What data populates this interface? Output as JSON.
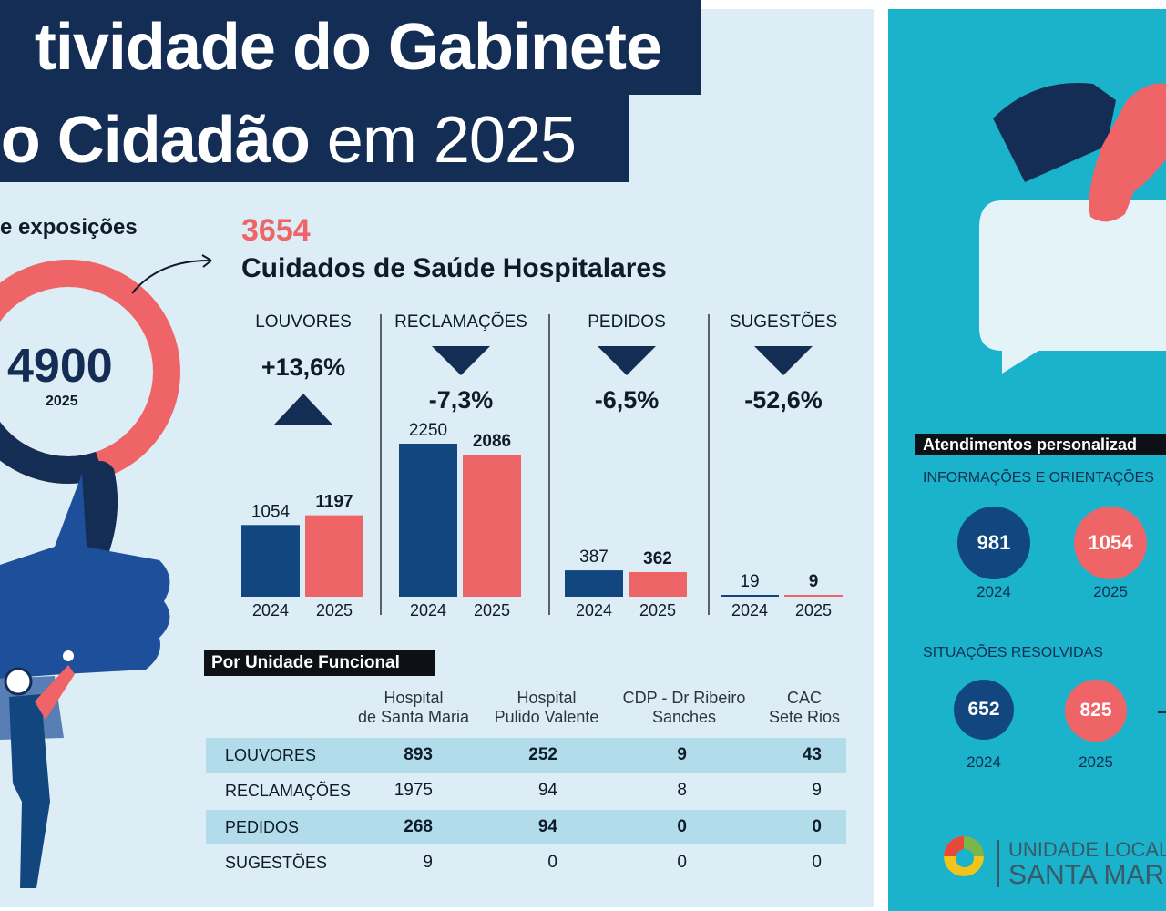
{
  "title": {
    "line1": "tividade do Gabinete",
    "line2_bold": "o Cidadão",
    "line2_regular": " em 2025"
  },
  "exposicoes": {
    "label": "e exposições",
    "total": "4900",
    "year": "2025"
  },
  "hospital": {
    "total": "3654",
    "label": "Cuidados de Saúde Hospitalares"
  },
  "chart_data": {
    "type": "bar",
    "categories": [
      "LOUVORES",
      "RECLAMAÇÕES",
      "PEDIDOS",
      "SUGESTÕES"
    ],
    "x": [
      "2024",
      "2025"
    ],
    "series": [
      {
        "name": "2024",
        "values": [
          1054,
          2250,
          387,
          19
        ]
      },
      {
        "name": "2025",
        "values": [
          1197,
          2086,
          362,
          9
        ]
      }
    ],
    "changes": [
      "+13,6%",
      "-7,3%",
      "-6,5%",
      "-52,6%"
    ],
    "trend": [
      "up",
      "down",
      "down",
      "down"
    ],
    "colors": {
      "2024": "#11467f",
      "2025": "#ef6466"
    }
  },
  "table": {
    "title": "Por Unidade Funcional",
    "headers": [
      [
        "Hospital",
        "de Santa Maria"
      ],
      [
        "Hospital",
        "Pulido Valente"
      ],
      [
        "CDP - Dr Ribeiro",
        "Sanches"
      ],
      [
        "CAC",
        "Sete Rios"
      ]
    ],
    "rows": [
      {
        "label": "LOUVORES",
        "values": [
          "893",
          "252",
          "9",
          "43"
        ]
      },
      {
        "label": "RECLAMAÇÕES",
        "values": [
          "1975",
          "94",
          "8",
          "9"
        ]
      },
      {
        "label": "PEDIDOS",
        "values": [
          "268",
          "94",
          "0",
          "0"
        ]
      },
      {
        "label": "SUGESTÕES",
        "values": [
          "9",
          "0",
          "0",
          "0"
        ]
      }
    ]
  },
  "atendimentos": {
    "title": "Atendimentos personalizad",
    "info_label": "INFORMAÇÕES E ORIENTAÇÕES",
    "info_2024": "981",
    "info_2025": "1054",
    "resolved_label": "SITUAÇÕES RESOLVIDAS",
    "resolved_2024": "652",
    "resolved_2025": "825",
    "year_a": "2024",
    "year_b": "2025"
  },
  "logo": {
    "line1": "UNIDADE LOCAL DE",
    "line2": "SANTA MARIA"
  },
  "colors": {
    "navy": "#142d55",
    "blue": "#11467f",
    "coral": "#ef6466",
    "light_bg": "#dcedf5",
    "teal": "#1bb2cc"
  }
}
